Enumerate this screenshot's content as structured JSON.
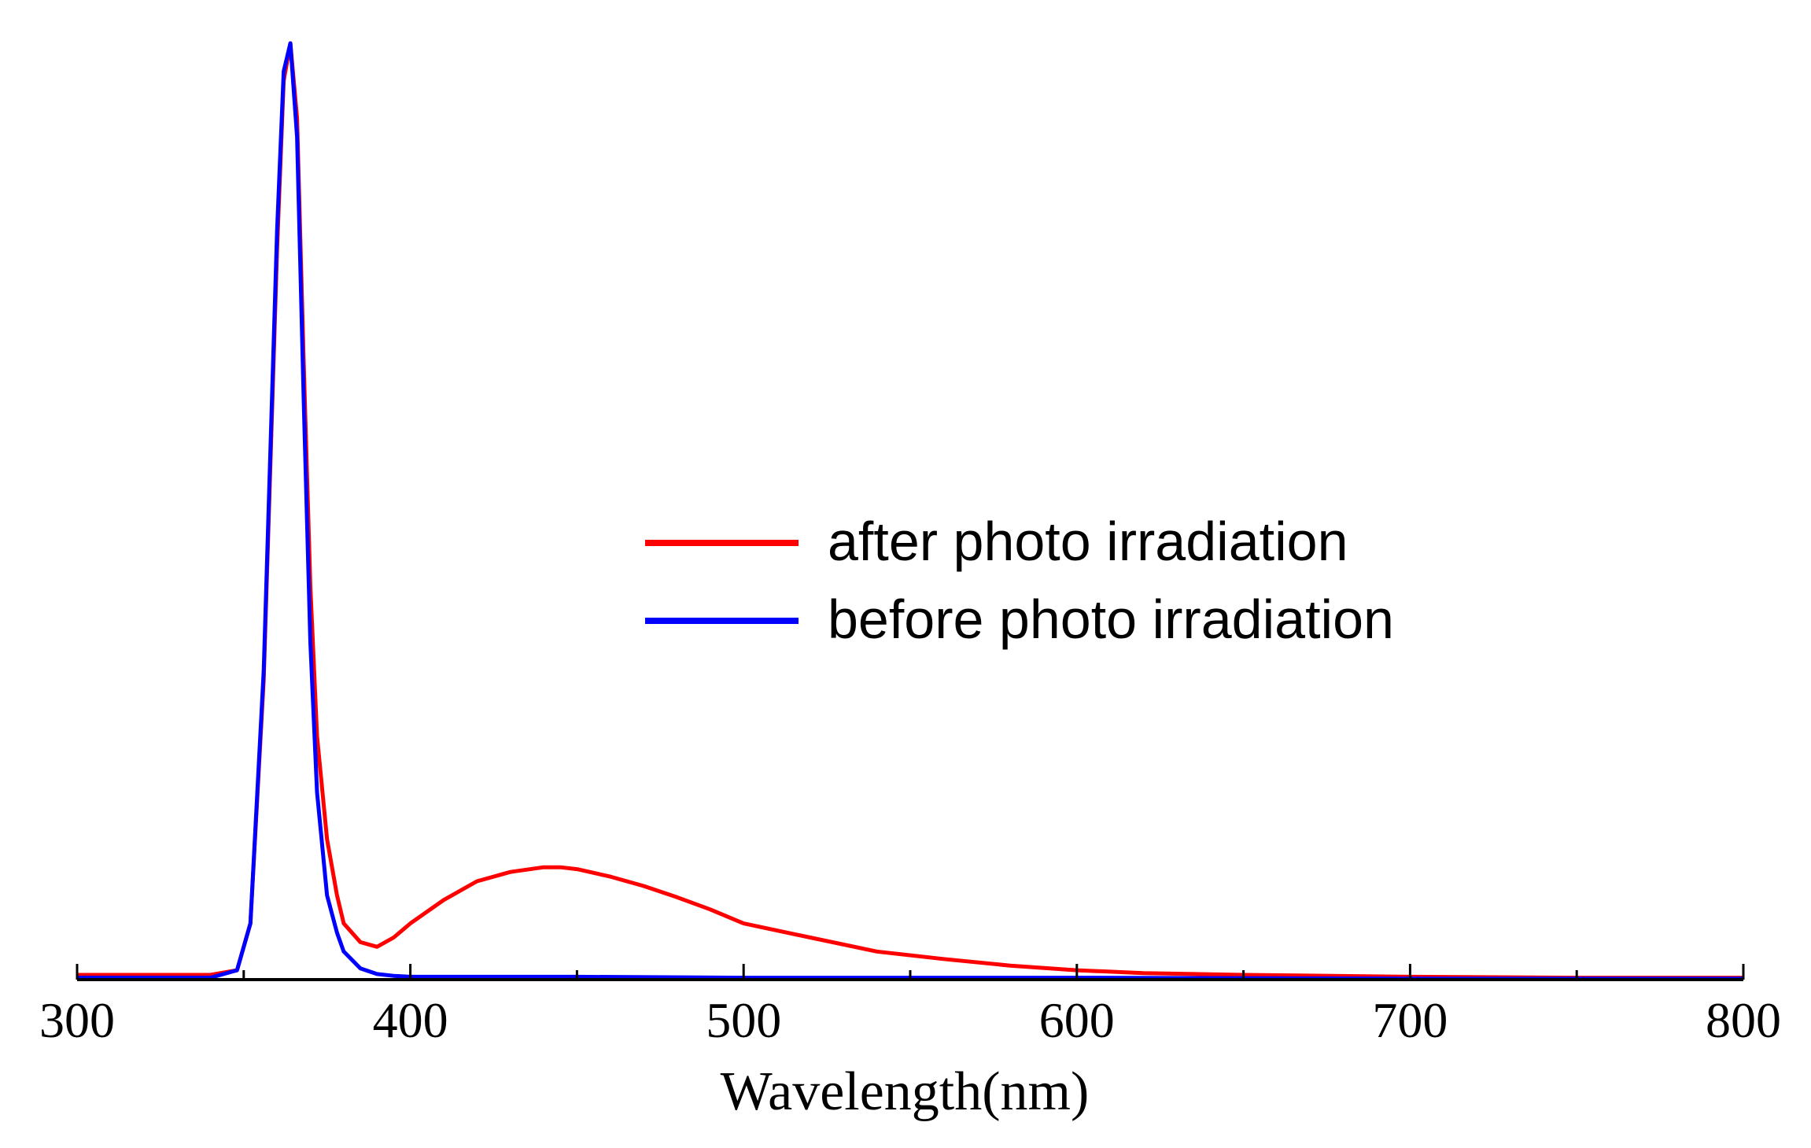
{
  "chart_data": {
    "type": "line",
    "title": "",
    "xlabel": "Wavelength(nm)",
    "ylabel": "",
    "xlim": [
      300,
      800
    ],
    "ylim": [
      0,
      1.0
    ],
    "x_ticks": [
      "300",
      "400",
      "500",
      "600",
      "700",
      "800"
    ],
    "x_minor_step": 50,
    "grid": false,
    "legend_position": "center-right",
    "series": [
      {
        "name": "after photo irradiation",
        "color": "#ff0000",
        "x": [
          300,
          340,
          348,
          352,
          356,
          360,
          362,
          364,
          366,
          368,
          370,
          372,
          375,
          378,
          380,
          385,
          390,
          395,
          400,
          410,
          420,
          430,
          440,
          445,
          450,
          460,
          470,
          480,
          490,
          500,
          520,
          540,
          560,
          580,
          600,
          620,
          650,
          700,
          750,
          800
        ],
        "y": [
          0.005,
          0.005,
          0.01,
          0.06,
          0.32,
          0.78,
          0.96,
          1.0,
          0.92,
          0.66,
          0.42,
          0.26,
          0.15,
          0.09,
          0.06,
          0.04,
          0.035,
          0.045,
          0.06,
          0.085,
          0.105,
          0.115,
          0.12,
          0.12,
          0.118,
          0.11,
          0.1,
          0.088,
          0.075,
          0.06,
          0.045,
          0.03,
          0.022,
          0.015,
          0.01,
          0.007,
          0.005,
          0.003,
          0.002,
          0.002
        ]
      },
      {
        "name": "before photo irradiation",
        "color": "#0000ff",
        "x": [
          300,
          340,
          348,
          352,
          356,
          360,
          362,
          364,
          366,
          368,
          370,
          372,
          375,
          378,
          380,
          385,
          390,
          395,
          400,
          420,
          450,
          500,
          600,
          700,
          800
        ],
        "y": [
          0.002,
          0.002,
          0.01,
          0.06,
          0.33,
          0.8,
          0.97,
          1.0,
          0.9,
          0.62,
          0.36,
          0.2,
          0.09,
          0.05,
          0.03,
          0.012,
          0.006,
          0.004,
          0.003,
          0.003,
          0.003,
          0.002,
          0.002,
          0.001,
          0.001
        ]
      }
    ]
  }
}
